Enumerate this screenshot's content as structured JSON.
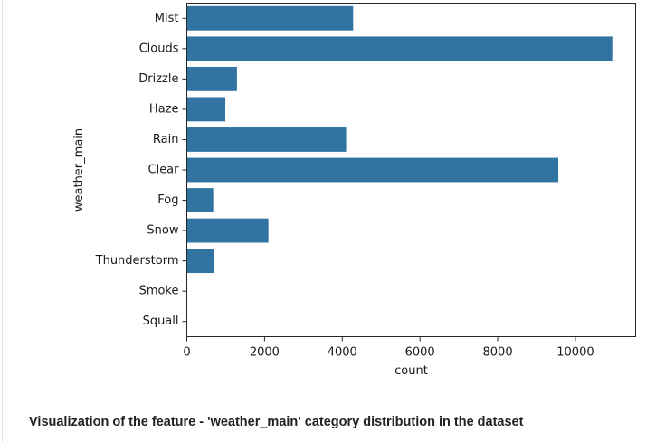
{
  "chart_data": {
    "type": "bar",
    "orientation": "horizontal",
    "categories": [
      "Mist",
      "Clouds",
      "Drizzle",
      "Haze",
      "Rain",
      "Clear",
      "Fog",
      "Snow",
      "Thunderstorm",
      "Smoke",
      "Squall"
    ],
    "values": [
      4280,
      10950,
      1290,
      990,
      4100,
      9560,
      680,
      2100,
      710,
      10,
      5
    ],
    "xlabel": "count",
    "ylabel": "weather_main",
    "xlim": [
      0,
      11550
    ],
    "xticks": [
      0,
      2000,
      4000,
      6000,
      8000,
      10000
    ],
    "grid": false,
    "bar_color": "#3274a1"
  },
  "caption": "Visualization of the feature - 'weather_main' category distribution in the dataset"
}
